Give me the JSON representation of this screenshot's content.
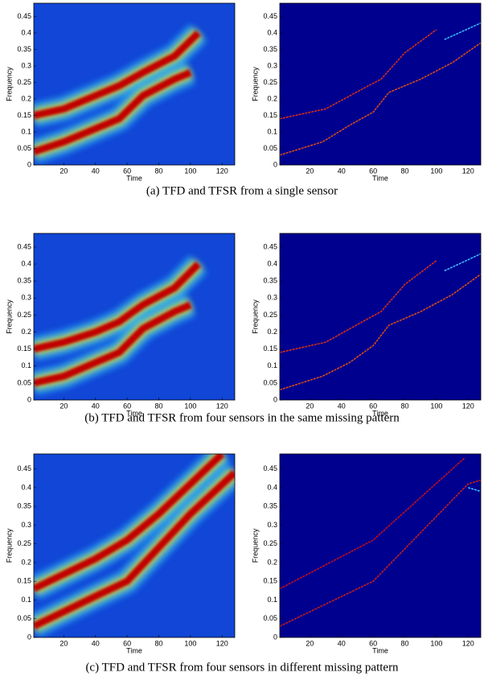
{
  "chart_data": [
    {
      "type": "heatmap",
      "background": "#1146d6",
      "xlabel": "Time",
      "ylabel": "Frequency",
      "xlim": [
        1,
        128
      ],
      "ylim": [
        0,
        0.49
      ],
      "xticks": [
        20,
        40,
        60,
        80,
        100,
        120
      ],
      "yticks": [
        0,
        0.05,
        0.1,
        0.15,
        0.2,
        0.25,
        0.3,
        0.35,
        0.4,
        0.45
      ],
      "series": [
        {
          "color": "#c00000",
          "x": [
            1,
            20,
            40,
            55,
            70,
            90,
            105
          ],
          "values": [
            0.15,
            0.17,
            0.21,
            0.24,
            0.28,
            0.33,
            0.4
          ]
        },
        {
          "color": "#c00000",
          "x": [
            1,
            20,
            40,
            55,
            70,
            90,
            100
          ],
          "values": [
            0.04,
            0.07,
            0.11,
            0.14,
            0.21,
            0.26,
            0.28
          ]
        }
      ]
    },
    {
      "type": "line",
      "background": "#00008f",
      "xlabel": "Time",
      "ylabel": "Frequency",
      "xlim": [
        1,
        128
      ],
      "ylim": [
        0,
        0.49
      ],
      "xticks": [
        20,
        40,
        60,
        80,
        100,
        120
      ],
      "yticks": [
        0,
        0.05,
        0.1,
        0.15,
        0.2,
        0.25,
        0.3,
        0.35,
        0.4,
        0.45
      ],
      "series": [
        {
          "color": "#e03010",
          "x": [
            1,
            30,
            57,
            65,
            80,
            100
          ],
          "values": [
            0.14,
            0.17,
            0.24,
            0.26,
            0.34,
            0.41
          ]
        },
        {
          "color": "#e05010",
          "x": [
            1,
            28,
            45,
            60,
            70,
            90,
            110,
            128
          ],
          "values": [
            0.03,
            0.07,
            0.12,
            0.16,
            0.22,
            0.26,
            0.31,
            0.37
          ]
        },
        {
          "color": "#40c0ff",
          "x": [
            105,
            128
          ],
          "values": [
            0.38,
            0.43
          ]
        }
      ]
    },
    {
      "type": "heatmap",
      "background": "#1146d6",
      "xlabel": "Time",
      "ylabel": "Frequency",
      "xlim": [
        1,
        128
      ],
      "ylim": [
        0,
        0.49
      ],
      "xticks": [
        20,
        40,
        60,
        80,
        100,
        120
      ],
      "yticks": [
        0,
        0.05,
        0.1,
        0.15,
        0.2,
        0.25,
        0.3,
        0.35,
        0.4,
        0.45
      ],
      "series": [
        {
          "color": "#c00000",
          "x": [
            1,
            20,
            40,
            55,
            70,
            90,
            105
          ],
          "values": [
            0.15,
            0.17,
            0.2,
            0.23,
            0.28,
            0.33,
            0.4
          ]
        },
        {
          "color": "#c00000",
          "x": [
            1,
            20,
            40,
            55,
            70,
            90,
            100
          ],
          "values": [
            0.05,
            0.07,
            0.11,
            0.14,
            0.21,
            0.26,
            0.28
          ]
        }
      ]
    },
    {
      "type": "line",
      "background": "#00008f",
      "xlabel": "Time",
      "ylabel": "Frequency",
      "xlim": [
        1,
        128
      ],
      "ylim": [
        0,
        0.49
      ],
      "xticks": [
        20,
        40,
        60,
        80,
        100,
        120
      ],
      "yticks": [
        0,
        0.05,
        0.1,
        0.15,
        0.2,
        0.25,
        0.3,
        0.35,
        0.4,
        0.45
      ],
      "series": [
        {
          "color": "#e03010",
          "x": [
            1,
            30,
            57,
            65,
            80,
            100
          ],
          "values": [
            0.14,
            0.17,
            0.24,
            0.26,
            0.34,
            0.41
          ]
        },
        {
          "color": "#e05010",
          "x": [
            1,
            28,
            45,
            60,
            70,
            90,
            110,
            128
          ],
          "values": [
            0.03,
            0.07,
            0.11,
            0.16,
            0.22,
            0.26,
            0.31,
            0.37
          ]
        },
        {
          "color": "#40c0ff",
          "x": [
            105,
            128
          ],
          "values": [
            0.38,
            0.43
          ]
        }
      ]
    },
    {
      "type": "heatmap",
      "background": "#1146d6",
      "xlabel": "Time",
      "ylabel": "Frequency",
      "xlim": [
        1,
        128
      ],
      "ylim": [
        0,
        0.49
      ],
      "xticks": [
        20,
        40,
        60,
        80,
        100,
        120
      ],
      "yticks": [
        0,
        0.05,
        0.1,
        0.15,
        0.2,
        0.25,
        0.3,
        0.35,
        0.4,
        0.45
      ],
      "series": [
        {
          "color": "#c00000",
          "x": [
            1,
            40,
            60,
            80,
            100,
            120
          ],
          "values": [
            0.13,
            0.21,
            0.26,
            0.33,
            0.41,
            0.49
          ]
        },
        {
          "color": "#c00000",
          "x": [
            1,
            40,
            60,
            80,
            100,
            128
          ],
          "values": [
            0.03,
            0.11,
            0.15,
            0.24,
            0.33,
            0.44
          ]
        }
      ]
    },
    {
      "type": "line",
      "background": "#00008f",
      "xlabel": "Time",
      "ylabel": "Frequency",
      "xlim": [
        1,
        128
      ],
      "ylim": [
        0,
        0.49
      ],
      "xticks": [
        20,
        40,
        60,
        80,
        100,
        120
      ],
      "yticks": [
        0,
        0.05,
        0.1,
        0.15,
        0.2,
        0.25,
        0.3,
        0.35,
        0.4,
        0.45
      ],
      "series": [
        {
          "color": "#d01010",
          "x": [
            1,
            60,
            118
          ],
          "values": [
            0.13,
            0.26,
            0.48
          ]
        },
        {
          "color": "#d02010",
          "x": [
            1,
            60,
            120,
            128
          ],
          "values": [
            0.03,
            0.15,
            0.41,
            0.42
          ]
        },
        {
          "color": "#40c0ff",
          "x": [
            120,
            128
          ],
          "values": [
            0.4,
            0.39
          ]
        }
      ]
    }
  ],
  "captions": [
    "(a)  TFD and TFSR from a single sensor",
    "(b)  TFD and TFSR from four sensors in the same missing pattern",
    "(c)  TFD and TFSR from four sensors in different missing pattern"
  ]
}
